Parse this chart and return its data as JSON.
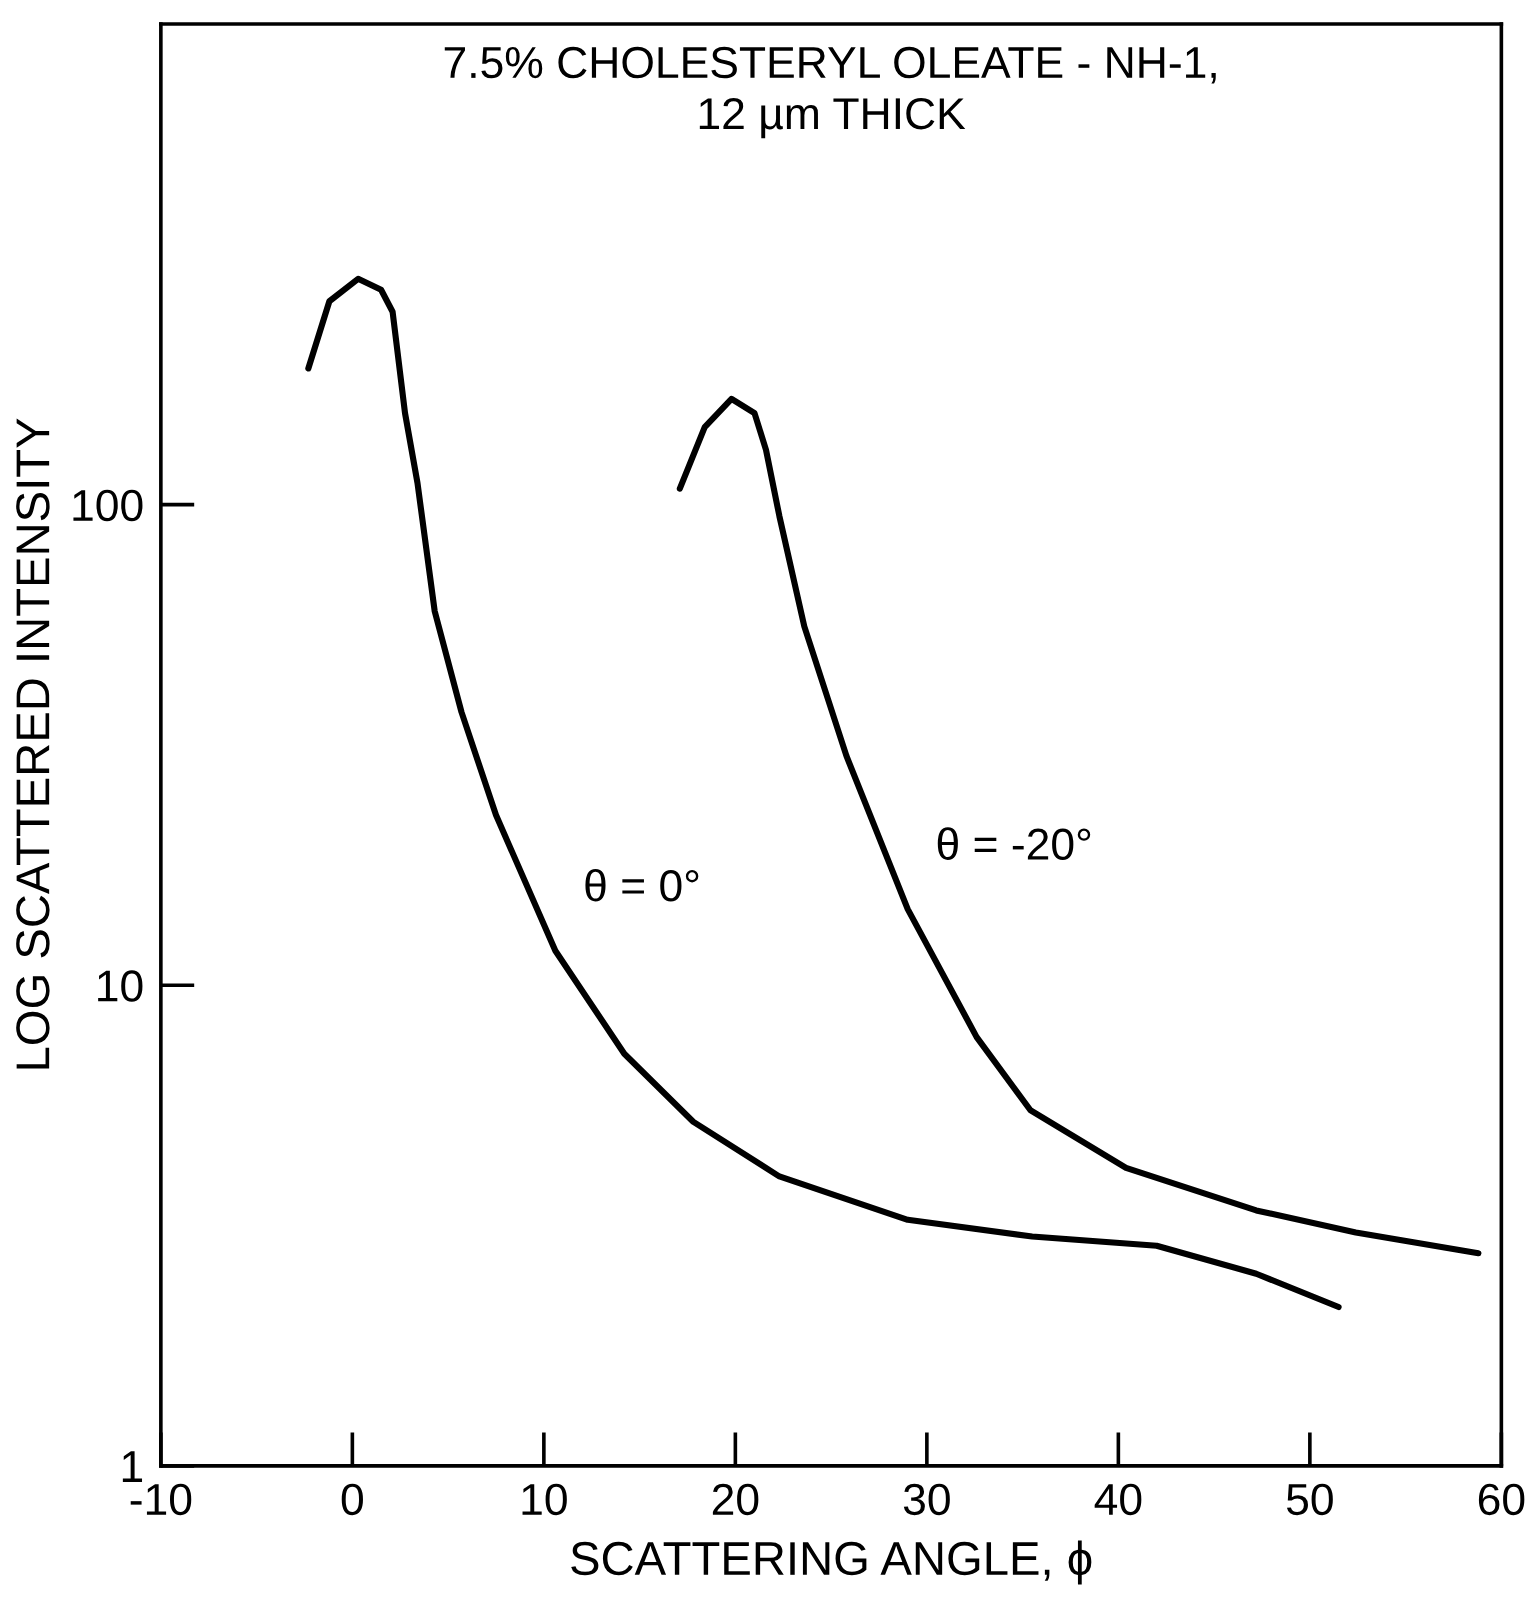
{
  "chart_data": {
    "type": "line",
    "title": "7.5% CHOLESTERYL OLEATE - NH-1,\n12 µm THICK",
    "xlabel": "SCATTERING ANGLE, ϕ",
    "ylabel": "LOG SCATTERED INTENSITY",
    "log": "y",
    "xlim": [
      -10,
      60
    ],
    "xticks": [
      -10,
      0,
      10,
      20,
      30,
      40,
      50,
      60
    ],
    "ylim": [
      1,
      1000
    ],
    "yticks": [
      1,
      10,
      100
    ],
    "grid": false,
    "legend": false,
    "marker": "none",
    "line_style": "solid",
    "series": [
      {
        "name": "θ = 0°",
        "color": "#000000",
        "x": [
          -2.3,
          -1.2,
          0.3,
          1.5,
          2.1,
          2.75,
          3.4,
          4.3,
          5.7,
          7.5,
          10.6,
          14.2,
          17.8,
          22.3,
          29,
          35.5,
          42,
          47.2,
          51.5
        ],
        "values": [
          192,
          265,
          295,
          280,
          252,
          155,
          111,
          60,
          37,
          22.6,
          11.8,
          7.2,
          5.2,
          4.0,
          3.25,
          3.0,
          2.87,
          2.51,
          2.14
        ]
      },
      {
        "name": "θ = -20°",
        "color": "#000000",
        "x": [
          17.1,
          18.4,
          19.8,
          21.0,
          21.6,
          22.3,
          23.6,
          25.8,
          29,
          32.6,
          35.4,
          40.4,
          47.2,
          52.4,
          58.8
        ],
        "values": [
          108,
          145,
          166,
          155,
          130,
          94.6,
          55.8,
          30,
          14.4,
          7.8,
          5.5,
          4.17,
          3.4,
          3.06,
          2.77
        ]
      }
    ]
  }
}
